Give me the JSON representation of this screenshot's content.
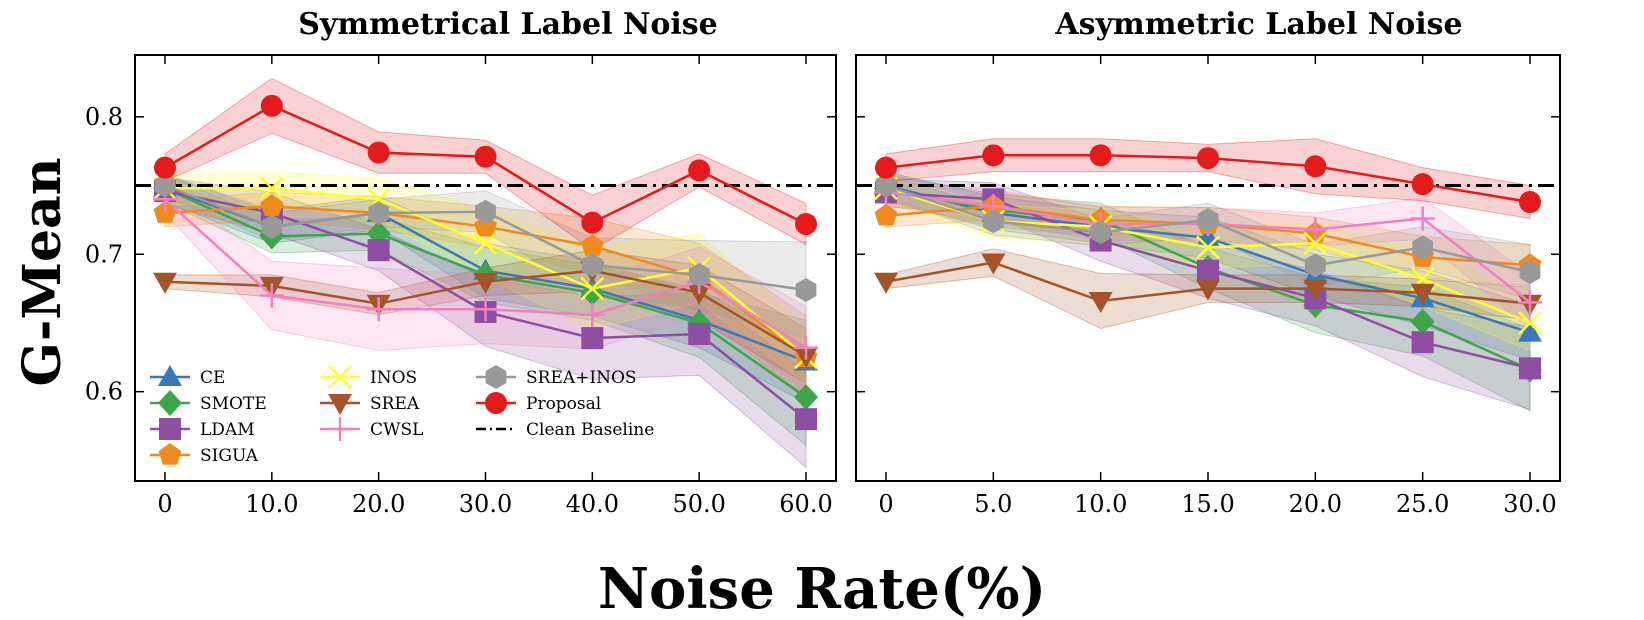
{
  "figure": {
    "ylabel": "G-Mean",
    "xlabel": "Noise Rate(%)",
    "baseline_value": 0.75
  },
  "legend": {
    "entries": [
      {
        "key": "CE",
        "label": "CE"
      },
      {
        "key": "SMOTE",
        "label": "SMOTE"
      },
      {
        "key": "LDAM",
        "label": "LDAM"
      },
      {
        "key": "SIGUA",
        "label": "SIGUA"
      },
      {
        "key": "INOS",
        "label": "INOS"
      },
      {
        "key": "SREA",
        "label": "SREA"
      },
      {
        "key": "CWSL",
        "label": "CWSL"
      },
      {
        "key": "SREA_INOS",
        "label": "SREA+INOS"
      },
      {
        "key": "Proposal",
        "label": "Proposal"
      },
      {
        "key": "Baseline",
        "label": "Clean Baseline"
      }
    ]
  },
  "styles": {
    "CE": {
      "color": "#3b78b8",
      "marker": "triangle-up"
    },
    "SMOTE": {
      "color": "#3ea64a",
      "marker": "diamond"
    },
    "LDAM": {
      "color": "#8e4ea4",
      "marker": "square"
    },
    "SIGUA": {
      "color": "#f08a1d",
      "marker": "pentagon"
    },
    "INOS": {
      "color": "#ffff33",
      "marker": "x"
    },
    "SREA": {
      "color": "#a35428",
      "marker": "triangle-down"
    },
    "CWSL": {
      "color": "#f081c0",
      "marker": "plus"
    },
    "SREA_INOS": {
      "color": "#999999",
      "marker": "hexagon"
    },
    "Proposal": {
      "color": "#e41a1c",
      "marker": "circle"
    },
    "Baseline": {
      "color": "#000000",
      "marker": "dashdot-line"
    }
  },
  "chart_data": [
    {
      "type": "line",
      "title": "Symmetrical Label Noise",
      "categories": [
        "0",
        "10.0",
        "20.0",
        "30.0",
        "40.0",
        "50.0",
        "60.0"
      ],
      "ylim": [
        0.535,
        0.845
      ],
      "yticks": [
        "0.6",
        "0.7",
        "0.8"
      ],
      "grid": false,
      "legend_position": "lower-left",
      "series": [
        {
          "name": "CE",
          "values": [
            0.748,
            0.72,
            0.73,
            0.688,
            0.675,
            0.652,
            0.622
          ],
          "band": [
            0.01,
            0.012,
            0.012,
            0.02,
            0.02,
            0.02,
            0.03
          ]
        },
        {
          "name": "SMOTE",
          "values": [
            0.748,
            0.713,
            0.715,
            0.685,
            0.672,
            0.65,
            0.596
          ],
          "band": [
            0.01,
            0.012,
            0.012,
            0.02,
            0.02,
            0.025,
            0.035
          ]
        },
        {
          "name": "LDAM",
          "values": [
            0.746,
            0.73,
            0.703,
            0.658,
            0.639,
            0.642,
            0.58
          ],
          "band": [
            0.01,
            0.015,
            0.015,
            0.025,
            0.03,
            0.03,
            0.035
          ]
        },
        {
          "name": "SIGUA",
          "values": [
            0.73,
            0.735,
            0.73,
            0.72,
            0.706,
            0.683,
            0.625
          ],
          "band": [
            0.01,
            0.01,
            0.012,
            0.015,
            0.02,
            0.025,
            0.03
          ]
        },
        {
          "name": "INOS",
          "values": [
            0.748,
            0.748,
            0.74,
            0.708,
            0.675,
            0.69,
            0.625
          ],
          "band": [
            0.012,
            0.012,
            0.015,
            0.025,
            0.03,
            0.025,
            0.02
          ]
        },
        {
          "name": "SREA",
          "values": [
            0.68,
            0.677,
            0.664,
            0.68,
            0.688,
            0.672,
            0.626
          ],
          "band": [
            0.005,
            0.008,
            0.008,
            0.01,
            0.015,
            0.02,
            0.02
          ]
        },
        {
          "name": "CWSL",
          "values": [
            0.74,
            0.67,
            0.66,
            0.66,
            0.656,
            0.68,
            0.632
          ],
          "band": [
            0.01,
            0.025,
            0.03,
            0.025,
            0.025,
            0.025,
            0.03
          ]
        },
        {
          "name": "SREA+INOS",
          "values": [
            0.75,
            0.72,
            0.73,
            0.731,
            0.692,
            0.685,
            0.674
          ],
          "band": [
            0.008,
            0.01,
            0.01,
            0.015,
            0.02,
            0.025,
            0.035
          ]
        },
        {
          "name": "Proposal",
          "values": [
            0.763,
            0.808,
            0.774,
            0.771,
            0.723,
            0.761,
            0.722
          ],
          "band": [
            0.01,
            0.02,
            0.015,
            0.012,
            0.02,
            0.012,
            0.015
          ]
        },
        {
          "name": "Clean Baseline",
          "values": [
            0.75,
            0.75,
            0.75,
            0.75,
            0.75,
            0.75,
            0.75
          ]
        }
      ]
    },
    {
      "type": "line",
      "title": "Asymmetric Label Noise",
      "categories": [
        "0",
        "5.0",
        "10.0",
        "15.0",
        "20.0",
        "25.0",
        "30.0"
      ],
      "ylim": [
        0.535,
        0.845
      ],
      "yticks": [
        "0.6",
        "0.7",
        "0.8"
      ],
      "grid": false,
      "series": [
        {
          "name": "CE",
          "values": [
            0.75,
            0.73,
            0.72,
            0.712,
            0.685,
            0.668,
            0.643
          ],
          "band": [
            0.01,
            0.012,
            0.012,
            0.015,
            0.015,
            0.02,
            0.02
          ]
        },
        {
          "name": "SMOTE",
          "values": [
            0.748,
            0.732,
            0.725,
            0.69,
            0.663,
            0.651,
            0.616
          ],
          "band": [
            0.01,
            0.012,
            0.012,
            0.015,
            0.02,
            0.025,
            0.03
          ]
        },
        {
          "name": "LDAM",
          "values": [
            0.745,
            0.74,
            0.71,
            0.688,
            0.668,
            0.636,
            0.617
          ],
          "band": [
            0.01,
            0.012,
            0.015,
            0.02,
            0.02,
            0.025,
            0.03
          ]
        },
        {
          "name": "SIGUA",
          "values": [
            0.728,
            0.735,
            0.725,
            0.722,
            0.715,
            0.698,
            0.692
          ],
          "band": [
            0.008,
            0.01,
            0.01,
            0.012,
            0.012,
            0.015,
            0.015
          ]
        },
        {
          "name": "INOS",
          "values": [
            0.748,
            0.724,
            0.72,
            0.705,
            0.708,
            0.682,
            0.65
          ],
          "band": [
            0.01,
            0.012,
            0.012,
            0.015,
            0.015,
            0.02,
            0.02
          ]
        },
        {
          "name": "SREA",
          "values": [
            0.68,
            0.694,
            0.666,
            0.675,
            0.675,
            0.672,
            0.664
          ],
          "band": [
            0.005,
            0.01,
            0.02,
            0.01,
            0.01,
            0.01,
            0.012
          ]
        },
        {
          "name": "CWSL",
          "values": [
            0.745,
            0.735,
            0.722,
            0.722,
            0.718,
            0.726,
            0.665
          ],
          "band": [
            0.01,
            0.012,
            0.012,
            0.012,
            0.012,
            0.015,
            0.02
          ]
        },
        {
          "name": "SREA+INOS",
          "values": [
            0.75,
            0.724,
            0.716,
            0.725,
            0.692,
            0.705,
            0.687
          ],
          "band": [
            0.008,
            0.01,
            0.01,
            0.012,
            0.015,
            0.015,
            0.02
          ]
        },
        {
          "name": "Proposal",
          "values": [
            0.763,
            0.772,
            0.772,
            0.77,
            0.764,
            0.751,
            0.738
          ],
          "band": [
            0.01,
            0.012,
            0.012,
            0.01,
            0.02,
            0.012,
            0.012
          ]
        },
        {
          "name": "Clean Baseline",
          "values": [
            0.75,
            0.75,
            0.75,
            0.75,
            0.75,
            0.75,
            0.75
          ]
        }
      ]
    }
  ]
}
